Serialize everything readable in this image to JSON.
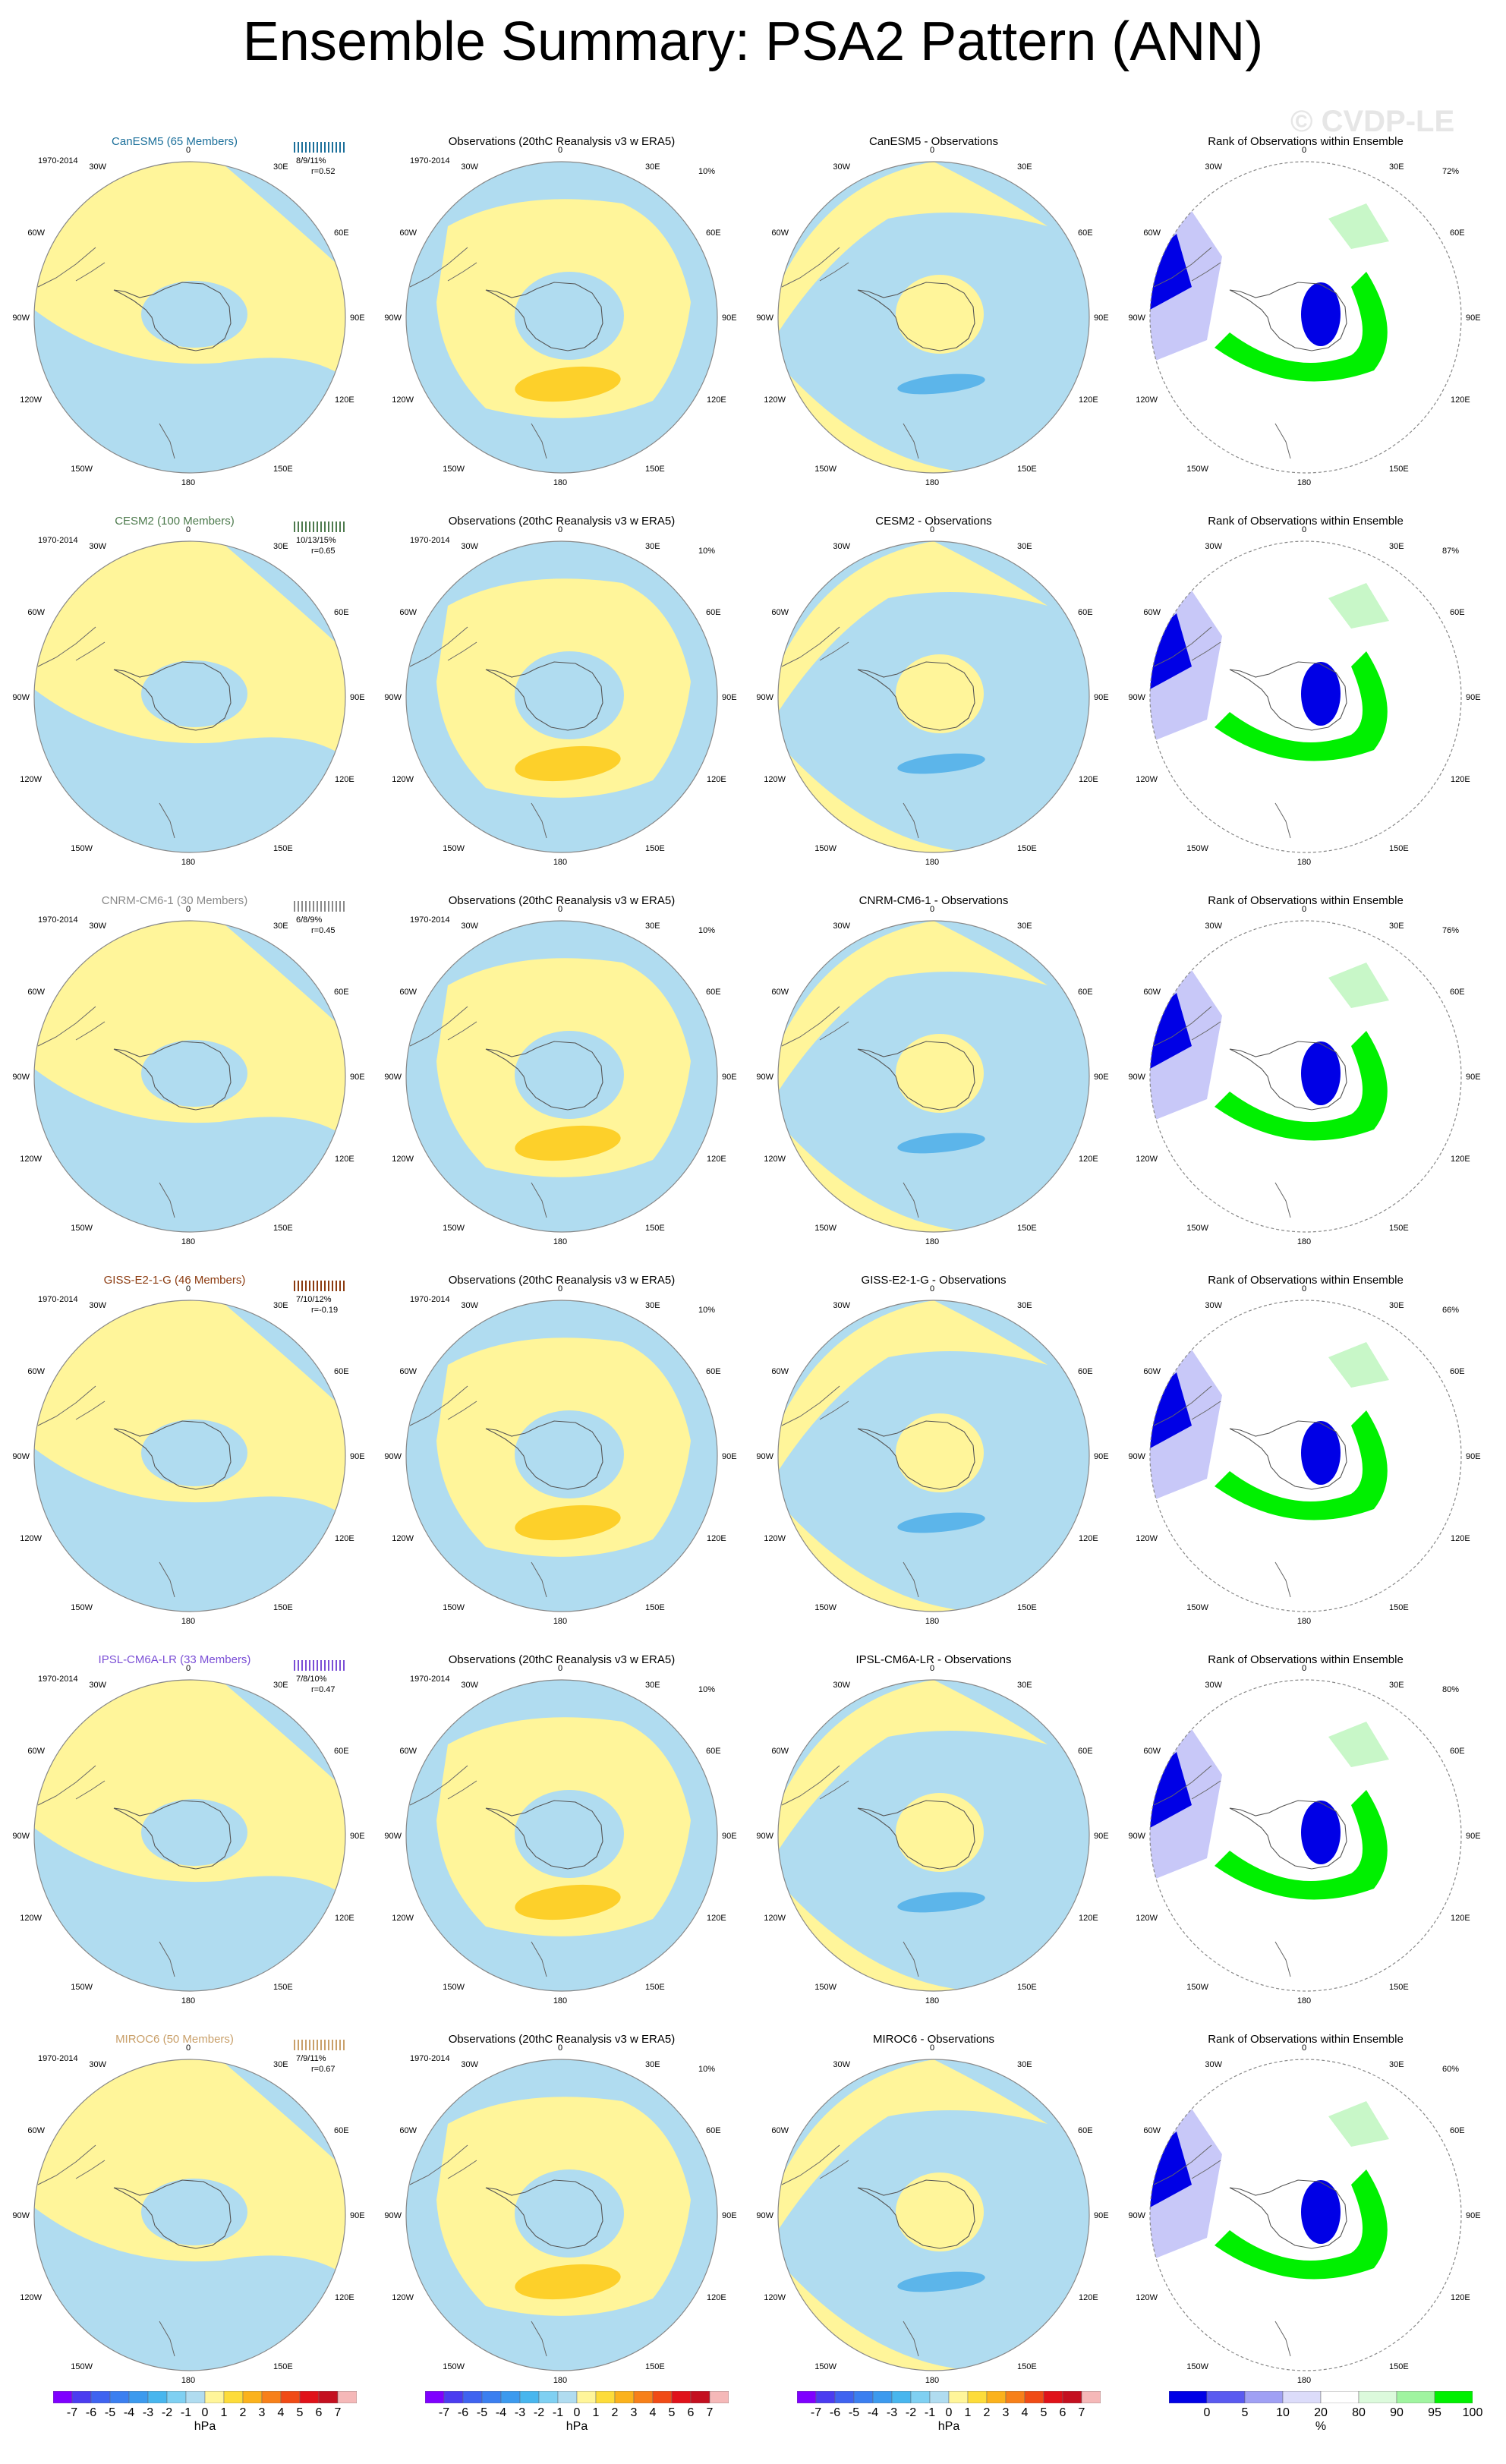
{
  "title": "Ensemble Summary: PSA2 Pattern (ANN)",
  "watermark": "© CVDP-LE",
  "period": "1970-2014",
  "obs_title": "Observations (20thC Reanalysis v3 w ERA5)",
  "obs_pct": "10%",
  "rank_title": "Rank of Observations within Ensemble",
  "lon_labels": {
    "n": "0",
    "ne": "30E",
    "e1": "60E",
    "e2": "90E",
    "e3": "120E",
    "se": "150E",
    "s": "180",
    "sw": "150W",
    "w3": "120W",
    "w2": "90W",
    "w1": "60W",
    "nw": "30W"
  },
  "colors": {
    "yellow": "#fff59a",
    "blue": "#b0dcf0",
    "orange": "#fdd02a",
    "dblue": "#5cb5ea",
    "rank_green": "#00f000",
    "rank_lgreen": "#c8f7c8",
    "rank_blue": "#0000e6",
    "rank_lblue": "#c8c8f8"
  },
  "models": [
    {
      "name": "CanESM5 (65 Members)",
      "color": "#1b6f9a",
      "stats": "8/9/11%",
      "r": "r=0.52",
      "diff_title": "CanESM5 - Observations",
      "rank_pct": "72%"
    },
    {
      "name": "CESM2 (100 Members)",
      "color": "#4d7a4d",
      "stats": "10/13/15%",
      "r": "r=0.65",
      "diff_title": "CESM2 - Observations",
      "rank_pct": "87%"
    },
    {
      "name": "CNRM-CM6-1 (30 Members)",
      "color": "#8a8a8a",
      "stats": "6/8/9%",
      "r": "r=0.45",
      "diff_title": "CNRM-CM6-1 - Observations",
      "rank_pct": "76%"
    },
    {
      "name": "GISS-E2-1-G (46 Members)",
      "color": "#8b3a0f",
      "stats": "7/10/12%",
      "r": "r=-0.19",
      "diff_title": "GISS-E2-1-G - Observations",
      "rank_pct": "66%"
    },
    {
      "name": "IPSL-CM6A-LR (33 Members)",
      "color": "#7b4fd6",
      "stats": "7/8/10%",
      "r": "r=0.47",
      "diff_title": "IPSL-CM6A-LR - Observations",
      "rank_pct": "80%"
    },
    {
      "name": "MIROC6 (50 Members)",
      "color": "#c9a06a",
      "stats": "7/9/11%",
      "r": "r=0.67",
      "diff_title": "MIROC6 - Observations",
      "rank_pct": "60%"
    }
  ],
  "hpa_colorbar": {
    "labels": [
      "-7",
      "-6",
      "-5",
      "-4",
      "-3",
      "-2",
      "-1",
      "0",
      "1",
      "2",
      "3",
      "4",
      "5",
      "6",
      "7"
    ],
    "colors": [
      "#7f00ff",
      "#4b3cf0",
      "#3f63f0",
      "#3b7ff0",
      "#3c9aee",
      "#48b6ee",
      "#7fd0f2",
      "#b0dcf0",
      "#fff59a",
      "#fddc3a",
      "#fbb21c",
      "#f7801a",
      "#f04b16",
      "#e0121a",
      "#c41020",
      "#f5b8b8"
    ],
    "unit": "hPa"
  },
  "rank_colorbar": {
    "labels": [
      "0",
      "5",
      "10",
      "20",
      "80",
      "90",
      "95",
      "100"
    ],
    "colors": [
      "#0000e6",
      "#5a5af0",
      "#a0a0f4",
      "#dcdcfa",
      "#ffffff",
      "#dcfadc",
      "#a0f4a0",
      "#00f000"
    ],
    "unit": "%"
  }
}
